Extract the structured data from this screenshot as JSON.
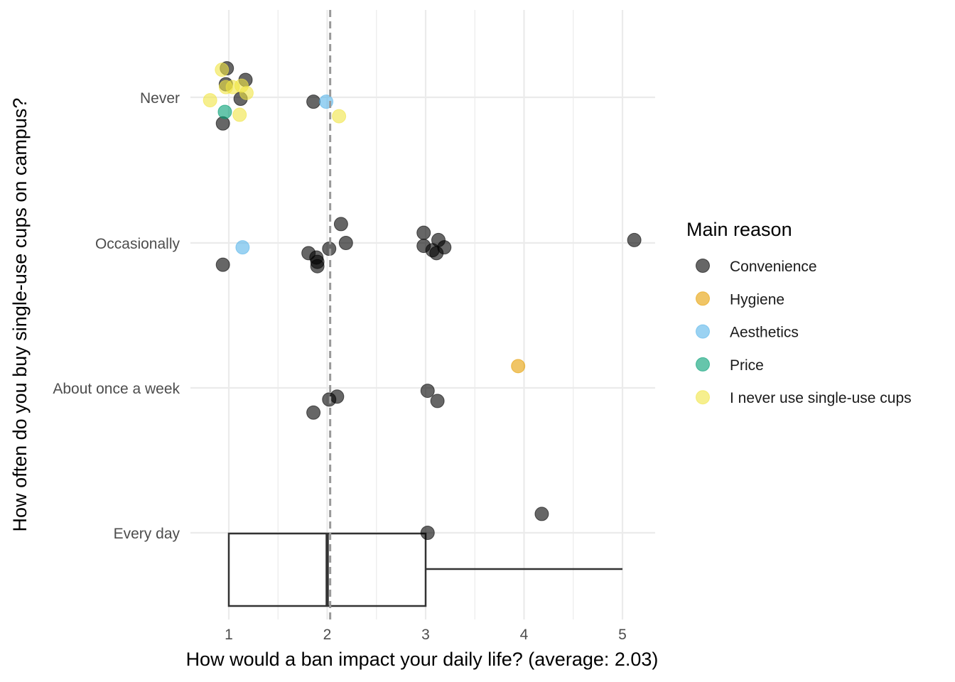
{
  "chart_data": {
    "type": "scatter",
    "xlabel": "How would a ban impact your daily life? (average: 2.03)",
    "ylabel": "How often do you buy single-use cups on campus?",
    "xlim": [
      0.67,
      5.33
    ],
    "x_ticks": [
      1,
      2,
      3,
      4,
      5
    ],
    "x_tick_labels": [
      "1",
      "2",
      "3",
      "4",
      "5"
    ],
    "categories": [
      "Every day",
      "About once a week",
      "Occasionally",
      "Never"
    ],
    "mean_line": 2.03,
    "grid": true,
    "legend_position": "right",
    "legend_title": "Main reason",
    "series": [
      {
        "name": "Convenience",
        "color": "#000000",
        "points": [
          {
            "x": 0.98,
            "y": "Never",
            "jitter": 0.2
          },
          {
            "x": 0.97,
            "y": "Never",
            "jitter": 0.09
          },
          {
            "x": 1.17,
            "y": "Never",
            "jitter": 0.12
          },
          {
            "x": 1.12,
            "y": "Never",
            "jitter": -0.01
          },
          {
            "x": 0.94,
            "y": "Never",
            "jitter": -0.18
          },
          {
            "x": 1.86,
            "y": "Never",
            "jitter": -0.03
          },
          {
            "x": 2.14,
            "y": "Occasionally",
            "jitter": 0.13
          },
          {
            "x": 2.19,
            "y": "Occasionally",
            "jitter": 0.0
          },
          {
            "x": 2.02,
            "y": "Occasionally",
            "jitter": -0.04
          },
          {
            "x": 1.81,
            "y": "Occasionally",
            "jitter": -0.07
          },
          {
            "x": 1.89,
            "y": "Occasionally",
            "jitter": -0.1
          },
          {
            "x": 1.9,
            "y": "Occasionally",
            "jitter": -0.13
          },
          {
            "x": 1.9,
            "y": "Occasionally",
            "jitter": -0.16
          },
          {
            "x": 0.94,
            "y": "Occasionally",
            "jitter": -0.15
          },
          {
            "x": 2.98,
            "y": "Occasionally",
            "jitter": 0.07
          },
          {
            "x": 3.13,
            "y": "Occasionally",
            "jitter": 0.02
          },
          {
            "x": 2.98,
            "y": "Occasionally",
            "jitter": -0.02
          },
          {
            "x": 3.19,
            "y": "Occasionally",
            "jitter": -0.03
          },
          {
            "x": 3.07,
            "y": "Occasionally",
            "jitter": -0.05
          },
          {
            "x": 3.11,
            "y": "Occasionally",
            "jitter": -0.07
          },
          {
            "x": 5.12,
            "y": "Occasionally",
            "jitter": 0.02
          },
          {
            "x": 3.02,
            "y": "About once a week",
            "jitter": -0.02
          },
          {
            "x": 2.1,
            "y": "About once a week",
            "jitter": -0.06
          },
          {
            "x": 2.02,
            "y": "About once a week",
            "jitter": -0.08
          },
          {
            "x": 3.12,
            "y": "About once a week",
            "jitter": -0.09
          },
          {
            "x": 1.86,
            "y": "About once a week",
            "jitter": -0.17
          },
          {
            "x": 4.18,
            "y": "Every day",
            "jitter": 0.13
          },
          {
            "x": 3.02,
            "y": "Every day",
            "jitter": 0.0
          }
        ]
      },
      {
        "name": "Hygiene",
        "color": "#E69F00",
        "points": [
          {
            "x": 3.94,
            "y": "About once a week",
            "jitter": 0.15
          }
        ]
      },
      {
        "name": "Aesthetics",
        "color": "#56B4E9",
        "points": [
          {
            "x": 1.99,
            "y": "Never",
            "jitter": -0.03
          },
          {
            "x": 1.14,
            "y": "Occasionally",
            "jitter": -0.03
          }
        ]
      },
      {
        "name": "Price",
        "color": "#009E73",
        "points": [
          {
            "x": 0.96,
            "y": "Never",
            "jitter": -0.1
          }
        ]
      },
      {
        "name": "I never use single-use cups",
        "color": "#F0E442",
        "points": [
          {
            "x": 0.93,
            "y": "Never",
            "jitter": 0.19
          },
          {
            "x": 0.97,
            "y": "Never",
            "jitter": 0.07
          },
          {
            "x": 1.04,
            "y": "Never",
            "jitter": 0.07
          },
          {
            "x": 1.13,
            "y": "Never",
            "jitter": 0.08
          },
          {
            "x": 1.18,
            "y": "Never",
            "jitter": 0.03
          },
          {
            "x": 0.81,
            "y": "Never",
            "jitter": -0.02
          },
          {
            "x": 1.11,
            "y": "Never",
            "jitter": -0.12
          },
          {
            "x": 2.12,
            "y": "Never",
            "jitter": -0.13
          }
        ]
      }
    ],
    "boxplot": {
      "min": 1,
      "q1": 1,
      "median": 2,
      "q3": 3,
      "max": 5,
      "position": "below Every day"
    }
  }
}
